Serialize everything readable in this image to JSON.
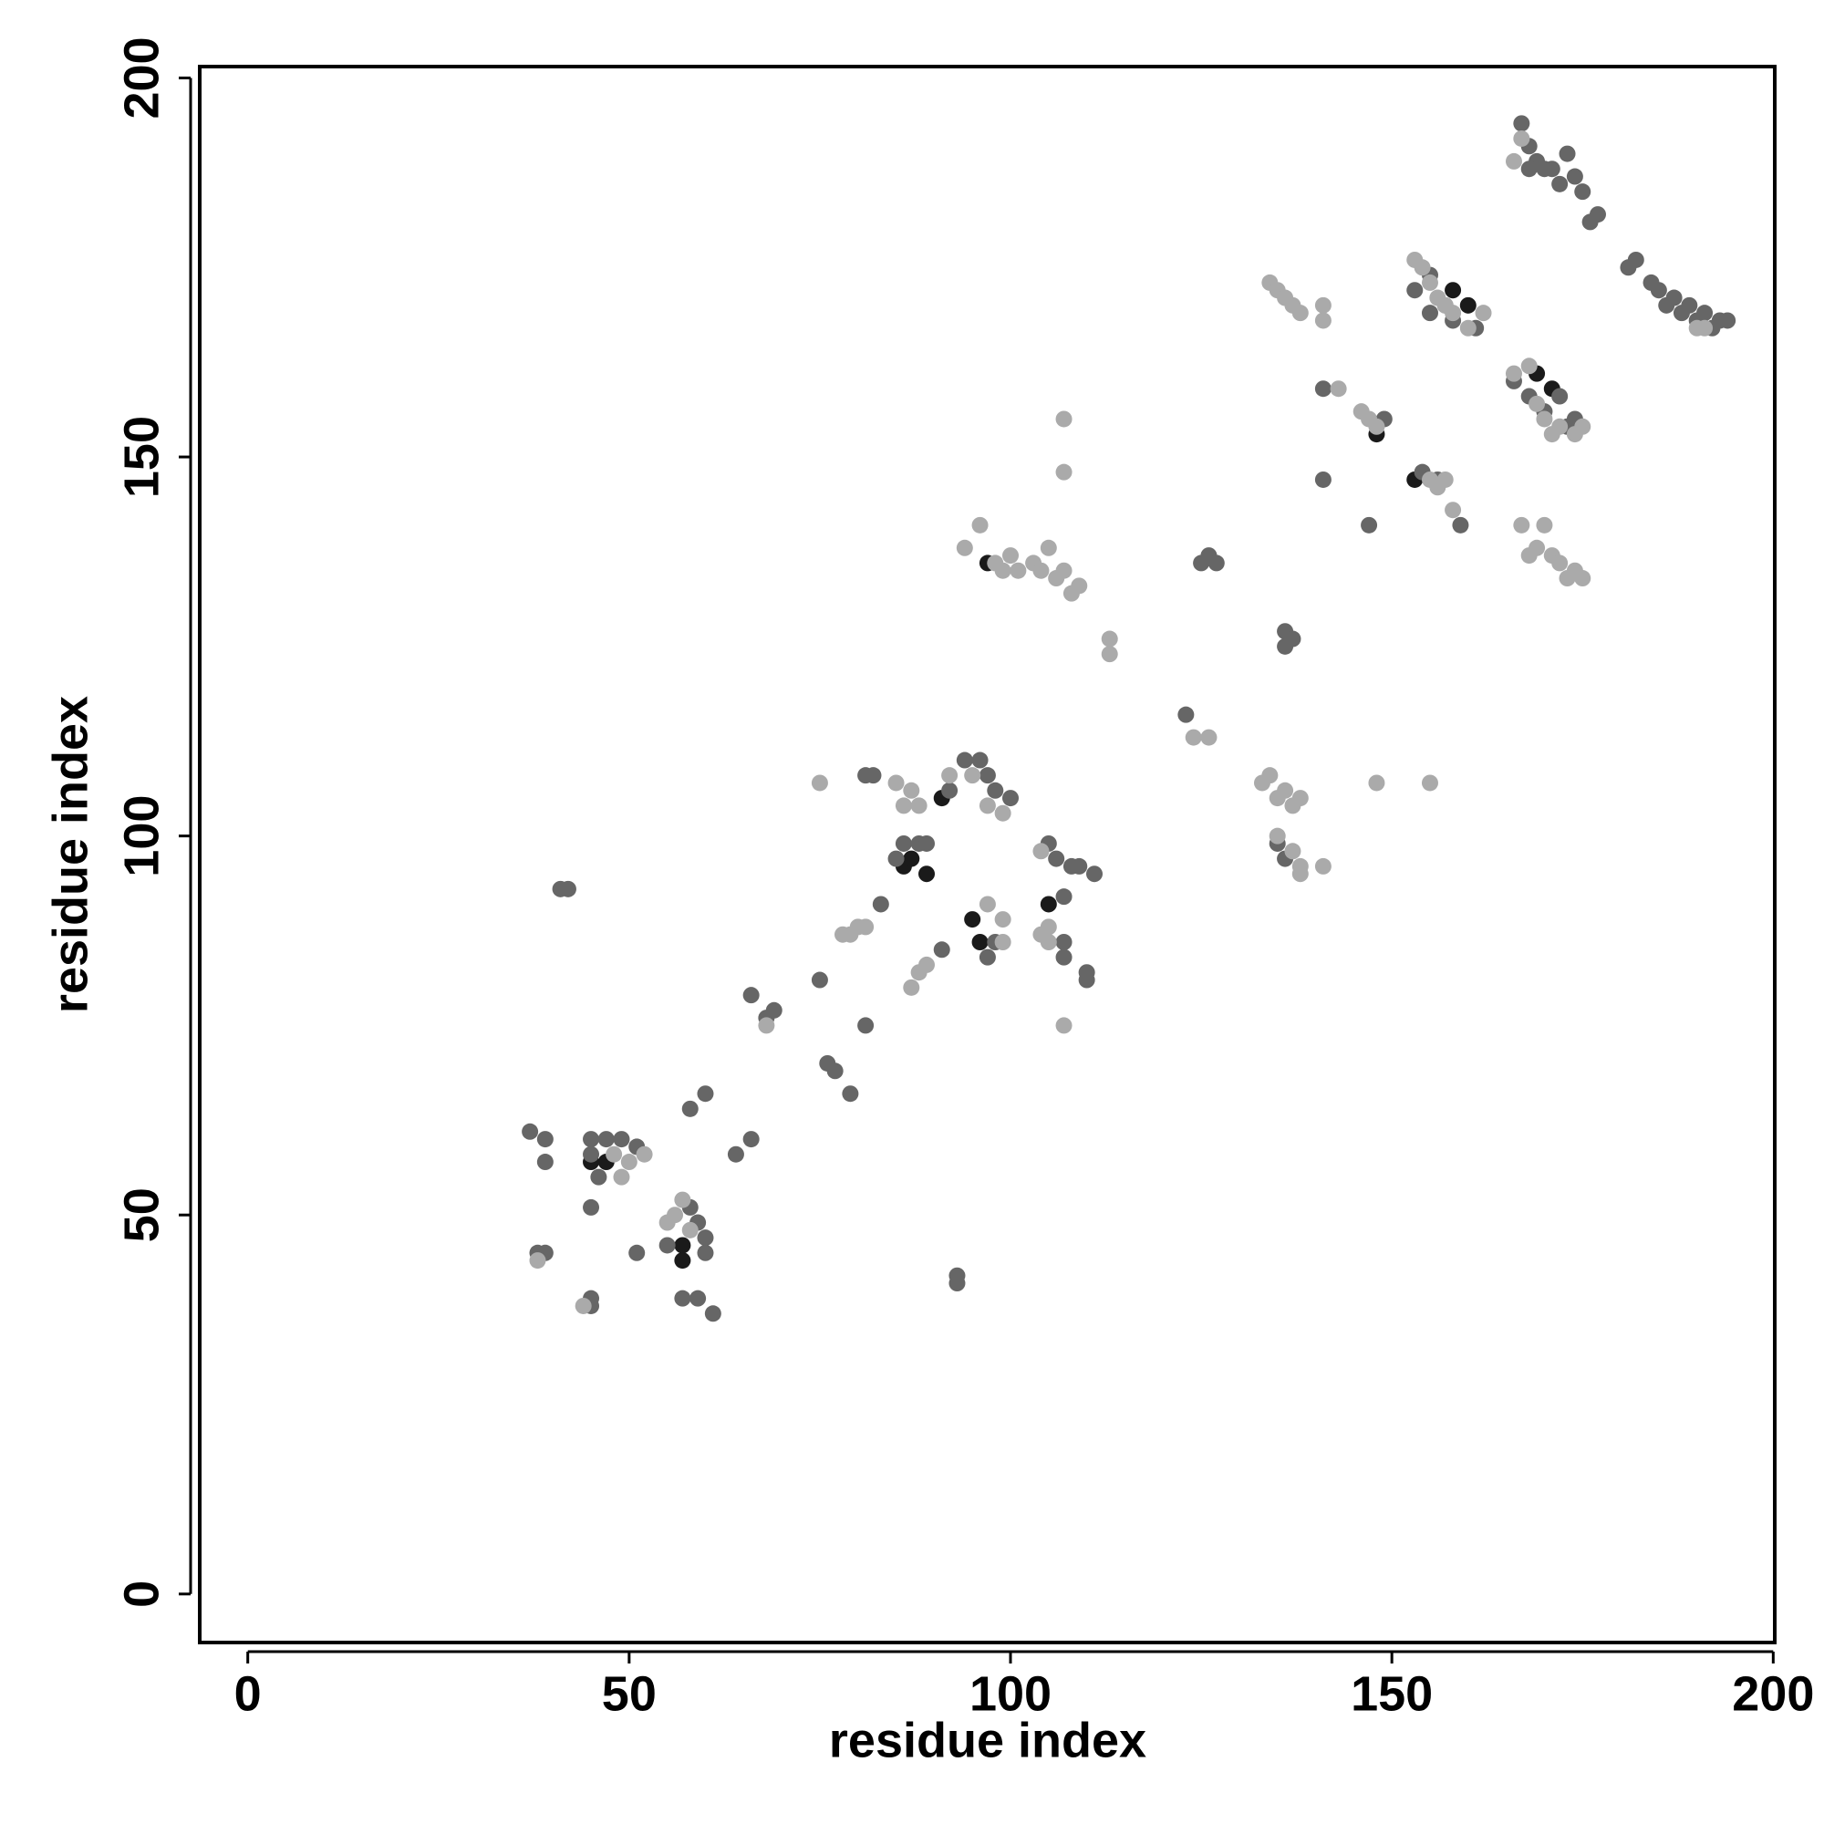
{
  "chart_data": {
    "type": "scatter",
    "x_label": "residue index",
    "y_label": "residue index",
    "xlim": [
      -6.3,
      200.2
    ],
    "ylim": [
      -6.4,
      201.5
    ],
    "xticks": [
      0,
      50,
      100,
      150,
      200
    ],
    "yticks": [
      0,
      50,
      100,
      150,
      200
    ],
    "series": [
      {
        "color": "#1a1a1a",
        "x": [
          45,
          47,
          57,
          57,
          86,
          89,
          87,
          91,
          95,
          96,
          97,
          105,
          148,
          153,
          158,
          160,
          169,
          171
        ],
        "values": [
          57,
          57,
          44,
          46,
          96,
          95,
          97,
          105,
          89,
          86,
          136,
          91,
          153,
          147,
          172,
          170,
          161,
          159
        ]
      },
      {
        "color": "#666666",
        "x": [
          37,
          39,
          39,
          39,
          38,
          45,
          45,
          46,
          45,
          47,
          49,
          51,
          51,
          55,
          58,
          58,
          59,
          60,
          60,
          60,
          59,
          61,
          57,
          64,
          66,
          66,
          68,
          69,
          75,
          76,
          77,
          79,
          81,
          81,
          82,
          83,
          85,
          86,
          88,
          89,
          91,
          92,
          94,
          96,
          97,
          98,
          100,
          93,
          93,
          97,
          98,
          105,
          106,
          108,
          109,
          110,
          110,
          107,
          107,
          107,
          111,
          41,
          42,
          45,
          45,
          123,
          125,
          126,
          127,
          136,
          136,
          137,
          141,
          141,
          147,
          149,
          153,
          155,
          155,
          157,
          158,
          161,
          159,
          154,
          156,
          166,
          168,
          170,
          172,
          173,
          174,
          167,
          168,
          169,
          171,
          172,
          173,
          174,
          175,
          176,
          177,
          181,
          182,
          184,
          185,
          186,
          187,
          188,
          189,
          190,
          191,
          192,
          193,
          194,
          136,
          135,
          170,
          168
        ],
        "values": [
          61,
          60,
          57,
          45,
          45,
          60,
          58,
          55,
          51,
          60,
          60,
          59,
          45,
          46,
          64,
          51,
          49,
          66,
          47,
          45,
          39,
          37,
          39,
          58,
          60,
          79,
          76,
          77,
          81,
          70,
          69,
          66,
          75,
          108,
          108,
          91,
          97,
          99,
          99,
          99,
          85,
          106,
          110,
          110,
          108,
          106,
          105,
          42,
          41,
          84,
          86,
          99,
          97,
          96,
          96,
          82,
          81,
          92,
          84,
          86,
          95,
          93,
          93,
          39,
          38,
          116,
          136,
          137,
          136,
          127,
          125,
          126,
          147,
          159,
          141,
          155,
          172,
          174,
          169,
          170,
          168,
          167,
          141,
          148,
          147,
          160,
          158,
          156,
          158,
          154,
          155,
          194,
          191,
          189,
          188,
          186,
          190,
          187,
          185,
          181,
          182,
          175,
          176,
          173,
          172,
          170,
          171,
          169,
          170,
          168,
          169,
          167,
          168,
          168,
          97,
          99,
          188,
          188
        ]
      },
      {
        "color": "#aaaaaa",
        "x": [
          38,
          44,
          48,
          50,
          52,
          49,
          55,
          56,
          57,
          58,
          68,
          75,
          78,
          79,
          80,
          81,
          87,
          88,
          89,
          85,
          86,
          87,
          88,
          92,
          94,
          96,
          98,
          99,
          100,
          101,
          95,
          97,
          99,
          97,
          99,
          99,
          104,
          104,
          105,
          105,
          107,
          107,
          107,
          103,
          104,
          105,
          106,
          107,
          108,
          109,
          113,
          113,
          124,
          126,
          133,
          134,
          135,
          136,
          137,
          138,
          135,
          137,
          138,
          138,
          141,
          134,
          135,
          136,
          137,
          138,
          141,
          141,
          143,
          146,
          147,
          148,
          148,
          155,
          153,
          154,
          155,
          156,
          157,
          158,
          160,
          162,
          155,
          156,
          157,
          158,
          166,
          168,
          169,
          170,
          171,
          172,
          174,
          175,
          167,
          170,
          169,
          171,
          172,
          173,
          174,
          175,
          166,
          167,
          190,
          191,
          168
        ],
        "values": [
          44,
          38,
          58,
          57,
          58,
          55,
          49,
          50,
          52,
          48,
          75,
          107,
          87,
          87,
          88,
          88,
          80,
          82,
          83,
          107,
          104,
          106,
          104,
          108,
          138,
          141,
          136,
          135,
          137,
          135,
          108,
          104,
          103,
          91,
          89,
          86,
          98,
          87,
          86,
          88,
          75,
          148,
          155,
          136,
          135,
          138,
          134,
          135,
          132,
          133,
          126,
          124,
          113,
          113,
          107,
          108,
          105,
          106,
          104,
          105,
          100,
          98,
          96,
          95,
          96,
          173,
          172,
          171,
          170,
          169,
          170,
          168,
          159,
          156,
          155,
          154,
          107,
          107,
          176,
          175,
          173,
          171,
          170,
          169,
          167,
          169,
          147,
          146,
          147,
          143,
          161,
          162,
          157,
          155,
          153,
          154,
          153,
          154,
          141,
          141,
          138,
          137,
          136,
          134,
          135,
          134,
          189,
          192,
          167,
          167,
          137
        ]
      }
    ]
  }
}
